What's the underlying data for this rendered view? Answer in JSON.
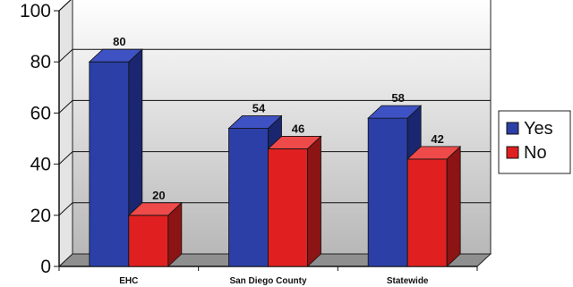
{
  "chart_data": {
    "type": "bar",
    "bar_style": "3d-clustered",
    "categories": [
      "EHC",
      "San Diego County",
      "Statewide"
    ],
    "series": [
      {
        "name": "Yes",
        "values": [
          80,
          54,
          58
        ],
        "color": "#2b3fa6",
        "side_color": "#1a2770",
        "top_color": "#3e52c4"
      },
      {
        "name": "No",
        "values": [
          20,
          46,
          42
        ],
        "color": "#e02020",
        "side_color": "#8c1414",
        "top_color": "#ee4a4a"
      }
    ],
    "ylim": [
      0,
      100
    ],
    "yticks": [
      0,
      20,
      40,
      60,
      80,
      100
    ],
    "grid": true,
    "legend_position": "right",
    "wall_gradient": [
      "#ffffff",
      "#b8b8b8"
    ]
  }
}
